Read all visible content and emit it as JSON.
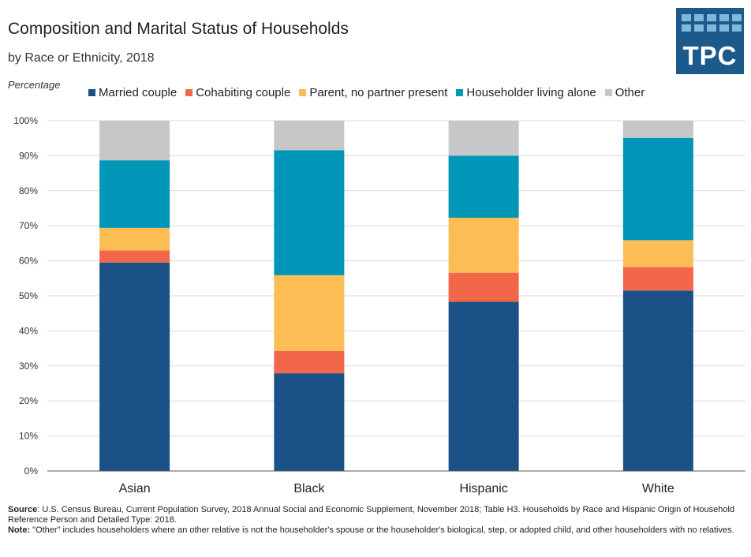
{
  "header": {
    "title": "Composition and Marital Status of Households",
    "subtitle": "by Race or Ethnicity, 2018"
  },
  "logo": {
    "text": "TPC",
    "background": "#1c5a8c",
    "tile_color": "#7fb7dd"
  },
  "chart_data": {
    "type": "bar",
    "stacked": true,
    "ylabel": "Percentage",
    "ylim": [
      0,
      100
    ],
    "y_ticks": [
      "0%",
      "10%",
      "20%",
      "30%",
      "40%",
      "50%",
      "60%",
      "70%",
      "80%",
      "90%",
      "100%"
    ],
    "grid": true,
    "legend_position": "top",
    "categories": [
      "Asian",
      "Black",
      "Hispanic",
      "White"
    ],
    "series": [
      {
        "name": "Married couple",
        "color": "#1a5288",
        "values": [
          59.5,
          27.9,
          48.3,
          51.5
        ]
      },
      {
        "name": "Cohabiting couple",
        "color": "#f2664a",
        "values": [
          3.5,
          6.4,
          8.3,
          6.7
        ]
      },
      {
        "name": "Parent, no partner present",
        "color": "#fcbd55",
        "values": [
          6.4,
          21.6,
          15.7,
          7.7
        ]
      },
      {
        "name": "Householder living alone",
        "color": "#0096b8",
        "values": [
          19.3,
          35.7,
          17.7,
          29.2
        ]
      },
      {
        "name": "Other",
        "color": "#c6c7c8",
        "values": [
          11.3,
          8.4,
          10.0,
          4.9
        ]
      }
    ]
  },
  "footer": {
    "source_label": "Source",
    "source_text": ": U.S. Census Bureau, Current Population Survey, 2018 Annual Social and Economic Supplement, November 2018; Table H3. Households by Race and Hispanic Origin of Household Reference Person and Detailed Type: 2018.",
    "note_label": "Note:",
    "note_text": " \"Other\" includes householders where an other relative is not the householder's spouse or the householder's biological, step, or adopted child, and other householders with no relatives."
  }
}
